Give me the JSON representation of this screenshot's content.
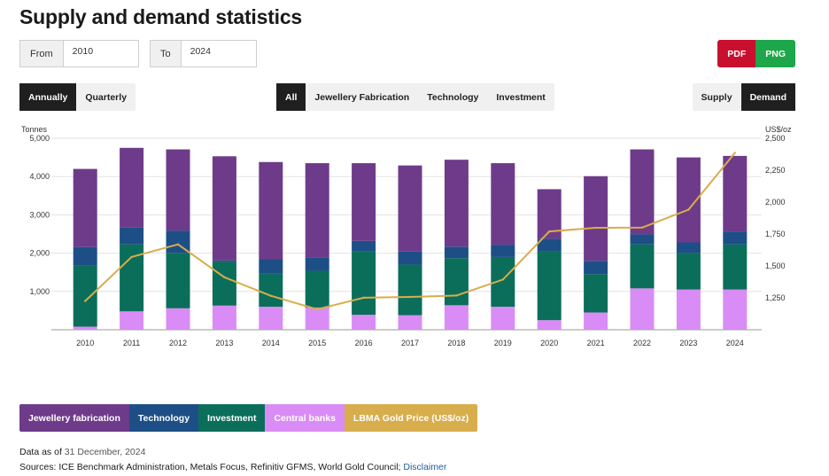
{
  "page": {
    "title": "Supply and demand statistics"
  },
  "range": {
    "from_label": "From",
    "from_value": "2010",
    "to_label": "To",
    "to_value": "2024"
  },
  "export": {
    "pdf_label": "PDF",
    "png_label": "PNG",
    "pdf_color": "#c8102e",
    "png_color": "#1ea64a"
  },
  "period_toggle": {
    "options": [
      "Annually",
      "Quarterly"
    ],
    "active": "Annually"
  },
  "category_tabs": {
    "options": [
      "All",
      "Jewellery Fabrication",
      "Technology",
      "Investment"
    ],
    "active": "All"
  },
  "mode_toggle": {
    "options": [
      "Supply",
      "Demand"
    ],
    "active": "Demand"
  },
  "chart_data": {
    "type": "bar",
    "stacked": true,
    "categories": [
      "2010",
      "2011",
      "2012",
      "2013",
      "2014",
      "2015",
      "2016",
      "2017",
      "2018",
      "2019",
      "2020",
      "2021",
      "2022",
      "2023",
      "2024"
    ],
    "series": [
      {
        "name": "Central banks",
        "color": "#d98cf5",
        "values": [
          80,
          480,
          560,
          630,
          600,
          580,
          390,
          380,
          640,
          600,
          250,
          450,
          1080,
          1050,
          1050
        ]
      },
      {
        "name": "Investment",
        "color": "#0b6e5a",
        "values": [
          1600,
          1750,
          1450,
          1150,
          880,
          960,
          1650,
          1320,
          1230,
          1300,
          1800,
          1000,
          1150,
          950,
          1180
        ]
      },
      {
        "name": "Technology",
        "color": "#1d4f86",
        "values": [
          480,
          440,
          580,
          30,
          360,
          350,
          280,
          340,
          300,
          320,
          330,
          350,
          260,
          280,
          330
        ]
      },
      {
        "name": "Jewellery fabrication",
        "color": "#6e3b8a",
        "values": [
          2040,
          2080,
          2120,
          2720,
          2540,
          2460,
          2030,
          2250,
          2270,
          2130,
          1290,
          2210,
          2220,
          2220,
          1980
        ]
      }
    ],
    "line_series": {
      "name": "LBMA Gold Price (US$/oz)",
      "color": "#d8ad4b",
      "values": [
        1225,
        1570,
        1669,
        1411,
        1266,
        1160,
        1251,
        1257,
        1268,
        1393,
        1770,
        1799,
        1800,
        1941,
        2386
      ]
    },
    "y_left": {
      "label": "Tonnes",
      "ticks": [
        "1,000",
        "2,000",
        "3,000",
        "4,000",
        "5,000"
      ],
      "range": [
        0,
        5000
      ]
    },
    "y_right": {
      "label": "US$/oz",
      "ticks": [
        "1,250",
        "1,500",
        "1,750",
        "2,000",
        "2,250",
        "2,500"
      ],
      "range": [
        1000,
        2500
      ]
    },
    "grid": true
  },
  "legend": {
    "items": [
      {
        "label": "Jewellery fabrication",
        "color": "#6e3b8a"
      },
      {
        "label": "Technology",
        "color": "#1d4f86"
      },
      {
        "label": "Investment",
        "color": "#0b6e5a"
      },
      {
        "label": "Central banks",
        "color": "#d98cf5"
      },
      {
        "label": "LBMA Gold Price (US$/oz)",
        "color": "#d8ad4b"
      }
    ]
  },
  "footer": {
    "as_of_prefix": "Data as of",
    "as_of_date": "31 December, 2024",
    "sources_text": "Sources: ICE Benchmark Administration, Metals Focus, Refinitiv GFMS, World Gold Council;",
    "disclaimer_label": "Disclaimer"
  }
}
